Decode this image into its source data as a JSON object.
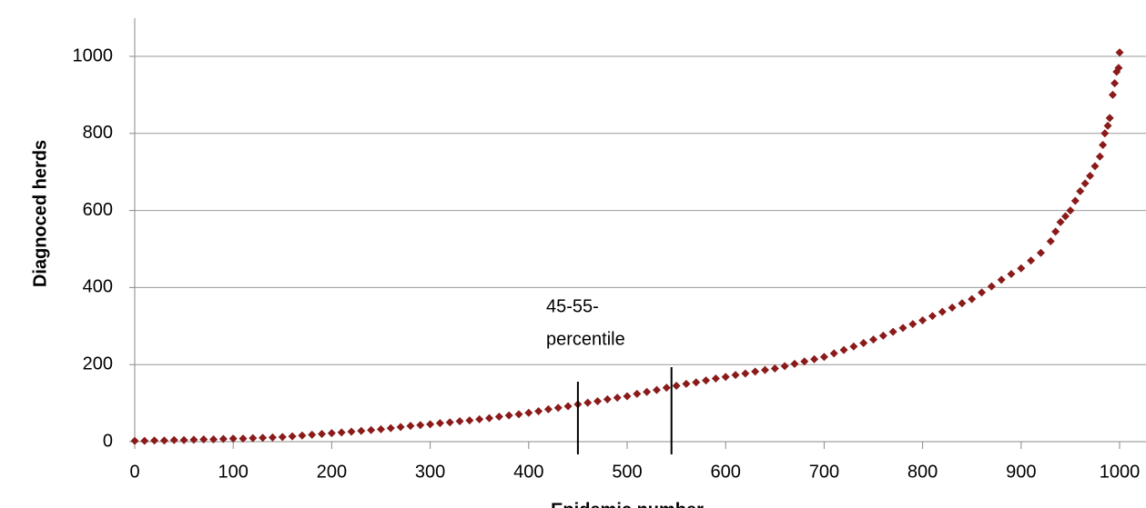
{
  "chart_data": {
    "type": "scatter",
    "x_label": "Epidemic number",
    "y_label": "Diagnoced herds",
    "annotation": [
      "45-55-",
      "percentile"
    ],
    "percentile_lines": [
      450,
      545
    ],
    "series": [
      {
        "color": "#8b1a1a",
        "x": [
          0,
          10,
          20,
          30,
          40,
          50,
          60,
          70,
          80,
          90,
          100,
          110,
          120,
          130,
          140,
          150,
          160,
          170,
          180,
          190,
          200,
          210,
          220,
          230,
          240,
          250,
          260,
          270,
          280,
          290,
          300,
          310,
          320,
          330,
          340,
          350,
          360,
          370,
          380,
          390,
          400,
          410,
          420,
          430,
          440,
          450,
          460,
          470,
          480,
          490,
          500,
          510,
          520,
          530,
          540,
          550,
          560,
          570,
          580,
          590,
          600,
          610,
          620,
          630,
          640,
          650,
          660,
          670,
          680,
          690,
          700,
          710,
          720,
          730,
          740,
          750,
          760,
          770,
          780,
          790,
          800,
          810,
          820,
          830,
          840,
          850,
          860,
          870,
          880,
          890,
          900,
          910,
          920,
          930,
          935,
          940,
          945,
          950,
          955,
          960,
          965,
          970,
          975,
          980,
          983,
          985,
          988,
          990,
          993,
          995,
          997,
          999,
          1000
        ],
        "values": [
          2,
          2,
          3,
          3,
          4,
          4,
          5,
          6,
          6,
          7,
          8,
          8,
          9,
          10,
          11,
          12,
          14,
          16,
          18,
          20,
          22,
          24,
          26,
          28,
          30,
          32,
          35,
          38,
          41,
          43,
          45,
          48,
          50,
          53,
          55,
          58,
          61,
          65,
          68,
          71,
          75,
          79,
          84,
          88,
          92,
          97,
          101,
          105,
          110,
          114,
          118,
          124,
          129,
          134,
          140,
          145,
          150,
          154,
          159,
          164,
          168,
          173,
          177,
          182,
          186,
          190,
          196,
          202,
          208,
          214,
          220,
          229,
          238,
          247,
          256,
          265,
          275,
          285,
          295,
          305,
          315,
          326,
          337,
          348,
          359,
          370,
          387,
          403,
          420,
          435,
          450,
          470,
          490,
          520,
          545,
          570,
          585,
          600,
          625,
          650,
          670,
          690,
          715,
          740,
          770,
          800,
          820,
          840,
          900,
          930,
          960,
          970,
          1010
        ]
      }
    ],
    "xlim": [
      0,
      1000
    ],
    "xticks": [
      0,
      100,
      200,
      300,
      400,
      500,
      600,
      700,
      800,
      900,
      1000
    ],
    "ylim": [
      0,
      1000
    ],
    "yticks": [
      0,
      200,
      400,
      600,
      800,
      1000
    ],
    "grid": true
  }
}
